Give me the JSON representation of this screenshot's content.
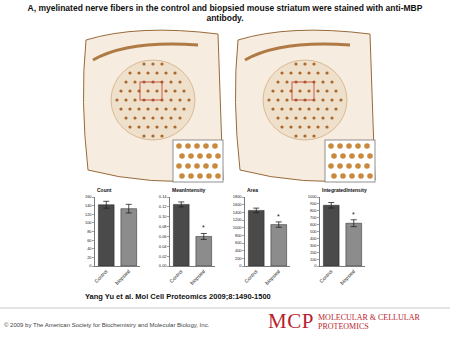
{
  "header": {
    "title": "A, myelinated nerve fibers in the control and biopsied mouse striatum were stained with anti-MBP antibody."
  },
  "citation": "Yang Yu et al. Mol Cell Proteomics 2009;8:1490-1500",
  "footer": {
    "copyright": "© 2009 by The American Society for Biochemistry and Molecular Biology, Inc.",
    "logo_main": "MCP",
    "logo_sub": [
      "MOLECULAR & CELLULAR",
      "PROTEOMICS"
    ]
  },
  "chart_data": [
    {
      "type": "bar",
      "title": "Count",
      "categories": [
        "Control",
        "biopsied"
      ],
      "values": [
        142,
        133
      ],
      "errors": [
        8,
        10
      ],
      "colors": [
        "#4a4a4a",
        "#8c8c8c"
      ],
      "ylim": [
        0,
        160
      ],
      "yticks": [
        0,
        20,
        40,
        60,
        80,
        100,
        120,
        140,
        160
      ],
      "annotations": []
    },
    {
      "type": "bar",
      "title": "MeanIntensity",
      "categories": [
        "Control",
        "biopsied"
      ],
      "values": [
        0.125,
        0.06
      ],
      "errors": [
        0.005,
        0.006
      ],
      "colors": [
        "#4a4a4a",
        "#8c8c8c"
      ],
      "ylim": [
        0,
        0.14
      ],
      "yticks": [
        {
          "value": 0,
          "label": "0.00"
        },
        {
          "value": 0.02,
          "label": "0.02"
        },
        {
          "value": 0.04,
          "label": "0.04"
        },
        {
          "value": 0.06,
          "label": "0.06"
        },
        {
          "value": 0.08,
          "label": "0.08"
        },
        {
          "value": 0.1,
          "label": "0.10"
        },
        {
          "value": 0.12,
          "label": "0.12"
        },
        {
          "value": 0.14,
          "label": "0.14"
        }
      ],
      "annotations": [
        {
          "category": "biopsied",
          "text": "*"
        }
      ]
    },
    {
      "type": "bar",
      "title": "Area",
      "categories": [
        "Control",
        "biopsied"
      ],
      "values": [
        1450,
        1080
      ],
      "errors": [
        60,
        70
      ],
      "colors": [
        "#4a4a4a",
        "#8c8c8c"
      ],
      "ylim": [
        0,
        1800
      ],
      "yticks": [
        0,
        200,
        400,
        600,
        800,
        1000,
        1200,
        1400,
        1600,
        1800
      ],
      "annotations": [
        {
          "category": "biopsied",
          "text": "*"
        }
      ]
    },
    {
      "type": "bar",
      "title": "IntegratedIntensity",
      "categories": [
        "Control",
        "biopsied"
      ],
      "values": [
        880,
        620
      ],
      "errors": [
        40,
        50
      ],
      "colors": [
        "#4a4a4a",
        "#8c8c8c"
      ],
      "ylim": [
        0,
        1000
      ],
      "yticks": [
        0,
        100,
        200,
        300,
        400,
        500,
        600,
        700,
        800,
        900,
        1000
      ],
      "annotations": [
        {
          "category": "biopsied",
          "text": "*"
        }
      ]
    }
  ]
}
